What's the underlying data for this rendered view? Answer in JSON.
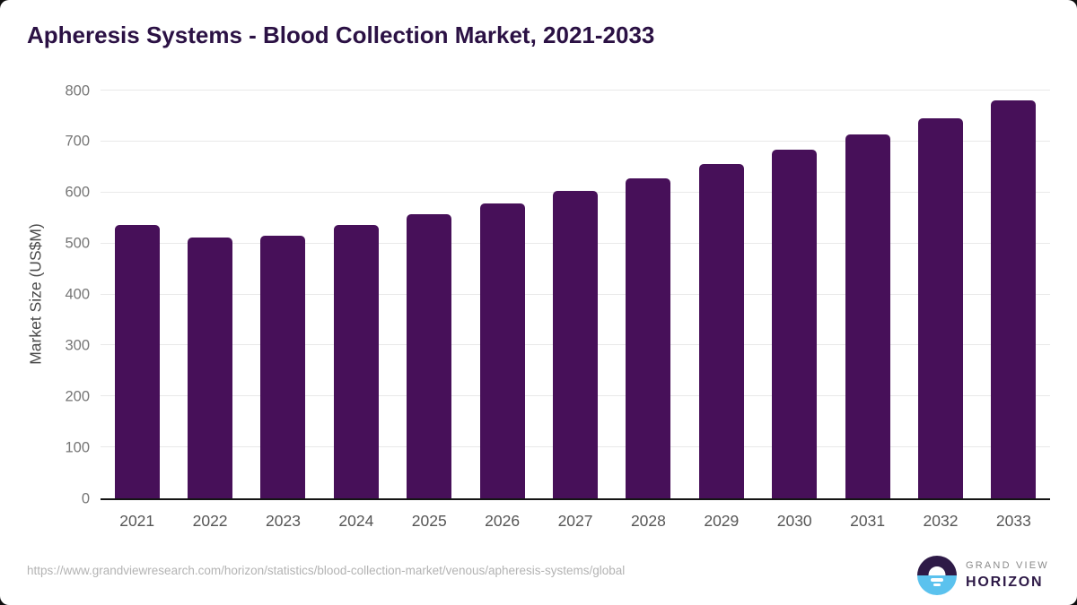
{
  "title": "Apheresis Systems - Blood Collection Market, 2021-2033",
  "chart_data": {
    "type": "bar",
    "title": "Apheresis Systems - Blood Collection Market, 2021-2033",
    "categories": [
      "2021",
      "2022",
      "2023",
      "2024",
      "2025",
      "2026",
      "2027",
      "2028",
      "2029",
      "2030",
      "2031",
      "2032",
      "2033"
    ],
    "values": [
      537,
      512,
      516,
      536,
      558,
      579,
      603,
      628,
      656,
      684,
      714,
      746,
      780
    ],
    "xlabel": "",
    "ylabel": "Market Size (US$M)",
    "ylim": [
      0,
      800
    ],
    "yticks": [
      0,
      100,
      200,
      300,
      400,
      500,
      600,
      700,
      800
    ],
    "grid": "horizontal-only",
    "legend": "none",
    "bar_color": "#471059"
  },
  "footer": {
    "source_url": "https://www.grandviewresearch.com/horizon/statistics/blood-collection-market/venous/apheresis-systems/global",
    "logo": {
      "brand_top": "GRAND VIEW",
      "brand_bottom": "HORIZON",
      "icon": "sunrise-circle-icon"
    }
  },
  "colors": {
    "bar": "#471059",
    "title_text": "#2b1144",
    "grid_line": "#e9e9e9",
    "axis_line": "#141414",
    "tick_label": "#767676",
    "x_label": "#565656",
    "axis_title": "#4a4a4a",
    "url_text": "#b3b3b3",
    "logo_purple": "#2e1a47",
    "logo_blue": "#5bc2ee",
    "logo_gray": "#8a8a8a",
    "page_corner": "#0e0e0e",
    "card_bg": "#ffffff"
  }
}
